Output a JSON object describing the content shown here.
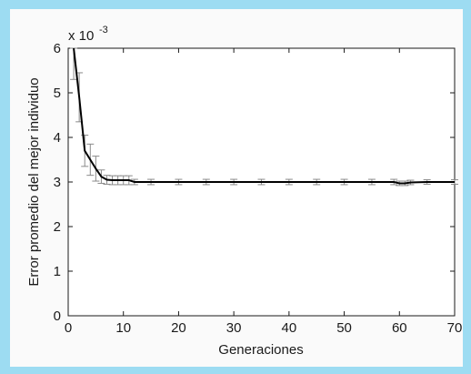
{
  "chart_data": {
    "type": "line",
    "title": "",
    "xlabel": "Generaciones",
    "ylabel": "Error promedio del mejor individuo",
    "y_multiplier_label": "x 10",
    "y_multiplier_exponent": "-3",
    "xlim": [
      0,
      70
    ],
    "ylim": [
      0,
      6
    ],
    "x_ticks": [
      "0",
      "10",
      "20",
      "30",
      "40",
      "50",
      "60",
      "70"
    ],
    "y_ticks": [
      "0",
      "1",
      "2",
      "3",
      "4",
      "5",
      "6"
    ],
    "grid": false,
    "series": [
      {
        "x": [
          1,
          2,
          3,
          4,
          5,
          6,
          7,
          8,
          9,
          10,
          11,
          12,
          15,
          20,
          25,
          30,
          35,
          40,
          45,
          50,
          55,
          59,
          60,
          61,
          62,
          65,
          70
        ],
        "y": [
          6.0,
          4.9,
          3.7,
          3.5,
          3.3,
          3.12,
          3.05,
          3.04,
          3.04,
          3.04,
          3.04,
          3.0,
          3.0,
          3.0,
          3.0,
          3.0,
          3.0,
          3.0,
          3.0,
          3.0,
          3.0,
          3.0,
          2.97,
          2.97,
          2.99,
          3.0,
          3.0
        ],
        "error": [
          0.7,
          0.55,
          0.35,
          0.35,
          0.28,
          0.15,
          0.1,
          0.1,
          0.1,
          0.1,
          0.1,
          0.06,
          0.06,
          0.06,
          0.06,
          0.06,
          0.06,
          0.06,
          0.06,
          0.06,
          0.06,
          0.06,
          0.05,
          0.05,
          0.05,
          0.05,
          0.05
        ],
        "color": "#000000"
      }
    ],
    "error_bar_color": "#8a8a8a"
  }
}
